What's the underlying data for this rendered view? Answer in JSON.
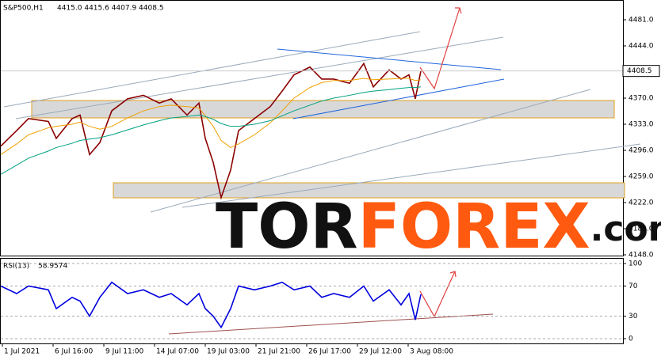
{
  "chart_data": [
    {
      "type": "line",
      "title": "S&P500,H1",
      "quote": "4415.0 4415.6 4407.9 4408.5",
      "watermark": [
        "TOR",
        "FOREX",
        ".com"
      ],
      "x": [
        0,
        4,
        7,
        12,
        14,
        18,
        20,
        22.4,
        25,
        28,
        32,
        36,
        40,
        43,
        47,
        50,
        51.6,
        53.6,
        55.6,
        58,
        60,
        64,
        68,
        71,
        74,
        78,
        81,
        84,
        88,
        91.6,
        94,
        98,
        101,
        103,
        104.6,
        106
      ],
      "series": [
        {
          "color": "#8b0000",
          "values": [
            4302,
            4324,
            4341,
            4337,
            4313,
            4341,
            4346,
            4290,
            4307,
            4352,
            4369,
            4374,
            4363,
            4369,
            4346,
            4363,
            4313,
            4279,
            4229,
            4268,
            4324,
            4341,
            4358,
            4380,
            4403,
            4414,
            4397,
            4397,
            4391,
            4419,
            4386,
            4410,
            4397,
            4403,
            4369,
            4408.5
          ]
        },
        {
          "color": "#f0a000",
          "values": [
            4290,
            4305,
            4318,
            4328,
            4330,
            4333,
            4336,
            4330,
            4326,
            4330,
            4342,
            4352,
            4358,
            4360,
            4358,
            4356,
            4345,
            4330,
            4310,
            4300,
            4305,
            4318,
            4335,
            4352,
            4370,
            4385,
            4392,
            4395,
            4395,
            4398,
            4396,
            4397,
            4398,
            4398,
            4395,
            4396
          ]
        },
        {
          "color": "#00a080",
          "values": [
            4262,
            4275,
            4285,
            4295,
            4300,
            4306,
            4310,
            4312,
            4314,
            4318,
            4325,
            4332,
            4338,
            4342,
            4344,
            4346,
            4344,
            4340,
            4334,
            4330,
            4330,
            4333,
            4338,
            4345,
            4352,
            4360,
            4366,
            4370,
            4374,
            4378,
            4380,
            4382,
            4384,
            4385,
            4385,
            4386
          ]
        }
      ],
      "xlim": [
        0,
        157
      ],
      "ylim": [
        4148,
        4481
      ],
      "yticks": [
        {
          "value": 4481,
          "label": "4481.0"
        },
        {
          "value": 4444,
          "label": "4444.0"
        },
        {
          "value": 4370,
          "label": "4370.0"
        },
        {
          "value": 4333,
          "label": "4333.0"
        },
        {
          "value": 4296,
          "label": "4296.0"
        },
        {
          "value": 4259,
          "label": "4259.0"
        },
        {
          "value": 4222,
          "label": "4222.0"
        },
        {
          "value": 4185,
          "label": "4185.0"
        },
        {
          "value": 4148,
          "label": "4148.0"
        }
      ],
      "last": 4408.5
    },
    {
      "type": "line",
      "title": "RSI(13)",
      "last": 58.9574,
      "x": [
        0,
        4,
        7,
        12,
        14,
        18,
        20,
        22.4,
        25,
        28,
        32,
        36,
        40,
        43,
        47,
        50,
        51.6,
        53.6,
        55.6,
        58,
        60,
        64,
        68,
        71,
        74,
        78,
        81,
        84,
        88,
        91.6,
        94,
        98,
        101,
        103,
        104.6,
        106
      ],
      "series": [
        {
          "color": "#0000dd",
          "values": [
            70,
            60,
            70,
            65,
            40,
            55,
            50,
            30,
            55,
            75,
            60,
            65,
            55,
            60,
            45,
            60,
            40,
            30,
            15,
            40,
            70,
            65,
            70,
            75,
            65,
            70,
            55,
            60,
            55,
            70,
            50,
            65,
            45,
            60,
            25,
            58.9574
          ]
        }
      ],
      "xlim": [
        0,
        157
      ],
      "ylim": [
        0,
        100
      ],
      "yticks": [
        100,
        70,
        30,
        0
      ],
      "grid": true,
      "xticks": [
        {
          "value": 0.4,
          "label": "1 Jul 2021"
        },
        {
          "value": 13.2,
          "label": "6 Jul 16:00"
        },
        {
          "value": 26,
          "label": "9 Jul 11:00"
        },
        {
          "value": 38.8,
          "label": "14 Jul 07:00"
        },
        {
          "value": 51.6,
          "label": "19 Jul 03:00"
        },
        {
          "value": 64.4,
          "label": "21 Jul 21:00"
        },
        {
          "value": 77.2,
          "label": "26 Jul 17:00"
        },
        {
          "value": 90,
          "label": "29 Jul 12:00"
        },
        {
          "value": 102.8,
          "label": "3 Aug 08:00"
        }
      ]
    }
  ]
}
